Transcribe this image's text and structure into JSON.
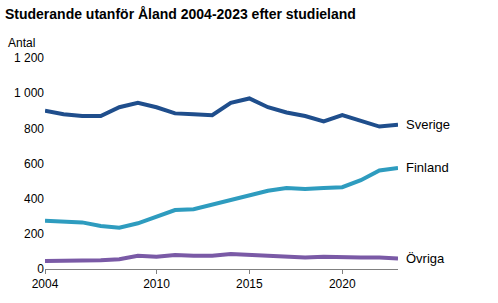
{
  "chart_data": {
    "type": "line",
    "title": "Studerande utanför Åland 2004-2023 efter studieland",
    "y_label": "Antal",
    "x": [
      2004,
      2005,
      2006,
      2007,
      2008,
      2009,
      2010,
      2011,
      2012,
      2013,
      2014,
      2015,
      2016,
      2017,
      2018,
      2019,
      2020,
      2021,
      2022,
      2023
    ],
    "series": [
      {
        "name": "Sverige",
        "color": "#1f4e8c",
        "values": [
          900,
          880,
          870,
          870,
          920,
          945,
          920,
          885,
          880,
          875,
          945,
          970,
          920,
          890,
          870,
          840,
          875,
          840,
          810,
          820
        ]
      },
      {
        "name": "Finland",
        "color": "#2e9cbf",
        "values": [
          275,
          270,
          265,
          245,
          235,
          260,
          295,
          335,
          340,
          365,
          390,
          420,
          445,
          460,
          455,
          460,
          465,
          505,
          560,
          575
        ]
      },
      {
        "name": "Övriga",
        "color": "#7a5aa6",
        "values": [
          45,
          45,
          45,
          50,
          55,
          75,
          70,
          80,
          75,
          75,
          85,
          80,
          80,
          70,
          65,
          70,
          65,
          65,
          65,
          60
        ]
      }
    ],
    "xlim": [
      2004,
      2023
    ],
    "xticks": [
      2004,
      2010,
      2015,
      2020
    ],
    "ylim": [
      0,
      1200
    ],
    "yticks": [
      0,
      200,
      400,
      600,
      800,
      {
        "value": 1000,
        "label": "1 000"
      },
      {
        "value": 1200,
        "label": "1 200"
      }
    ],
    "grid": false
  }
}
